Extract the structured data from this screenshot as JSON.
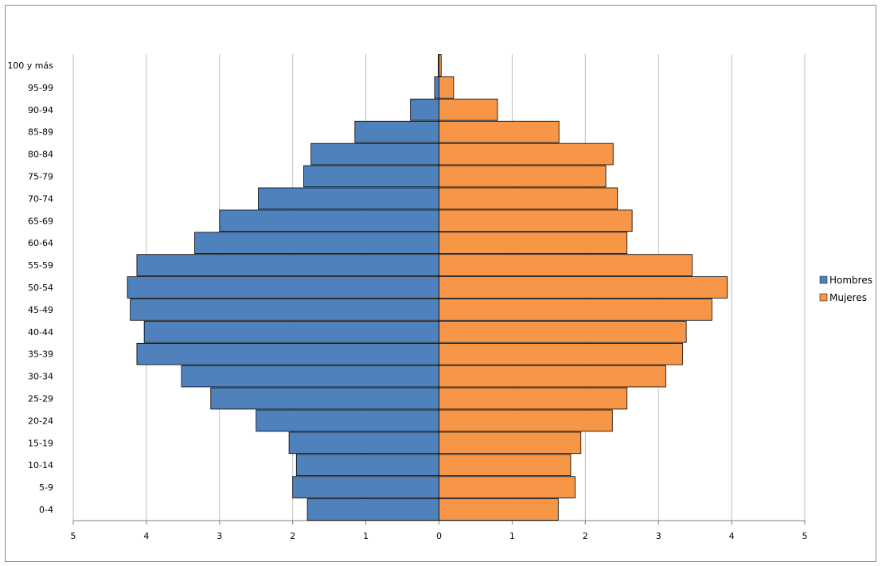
{
  "chart_data": {
    "type": "bar",
    "orientation": "horizontal",
    "layout": "population-pyramid",
    "categories": [
      "0-4",
      "5-9",
      "10-14",
      "15-19",
      "20-24",
      "25-29",
      "30-34",
      "35-39",
      "40-44",
      "45-49",
      "50-54",
      "55-59",
      "60-64",
      "65-69",
      "70-74",
      "75-79",
      "80-84",
      "85-89",
      "90-94",
      "95-99",
      "100 y más"
    ],
    "series": [
      {
        "name": "Hombres",
        "color": "#4f81bd",
        "side": "left",
        "values": [
          1.8,
          2.0,
          1.95,
          2.05,
          2.5,
          3.12,
          3.52,
          4.13,
          4.03,
          4.22,
          4.26,
          4.13,
          3.34,
          3.0,
          2.47,
          1.85,
          1.75,
          1.15,
          0.39,
          0.06,
          0.01
        ]
      },
      {
        "name": "Mujeres",
        "color": "#f79646",
        "side": "right",
        "values": [
          1.63,
          1.86,
          1.8,
          1.94,
          2.37,
          2.57,
          3.1,
          3.33,
          3.38,
          3.73,
          3.94,
          3.46,
          2.57,
          2.64,
          2.44,
          2.28,
          2.38,
          1.64,
          0.8,
          0.2,
          0.03
        ]
      }
    ],
    "x_ticks": [
      "5",
      "4",
      "3",
      "2",
      "1",
      "0",
      "1",
      "2",
      "3",
      "4",
      "5"
    ],
    "xlim": [
      -5,
      5
    ],
    "grid": "vertical",
    "legend_position": "right",
    "title": "",
    "xlabel": "",
    "ylabel": ""
  }
}
